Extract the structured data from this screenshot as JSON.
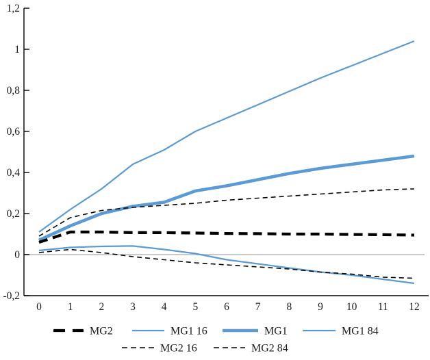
{
  "chart_data": {
    "type": "line",
    "title": "",
    "xlabel": "",
    "ylabel": "",
    "x": [
      0,
      1,
      2,
      3,
      4,
      5,
      6,
      7,
      8,
      9,
      10,
      11,
      12
    ],
    "xtick_labels": [
      "0",
      "1",
      "2",
      "3",
      "4",
      "5",
      "6",
      "7",
      "8",
      "9",
      "10",
      "11",
      "12"
    ],
    "ytick_values": [
      1.2,
      1.0,
      0.8,
      0.6,
      0.4,
      0.2,
      0.0,
      -0.2
    ],
    "ytick_labels": [
      "1,2",
      "1",
      "0,8",
      "0,6",
      "0,4",
      "0,2",
      "0",
      "-0,2"
    ],
    "ylim": [
      -0.2,
      1.2
    ],
    "xlim": [
      0,
      12
    ],
    "grid": "zero-line-only",
    "legend_position": "bottom",
    "series": [
      {
        "name": "MG1 84",
        "color": "#5B9BD5",
        "width": 2.2,
        "dash": null,
        "values": [
          0.11,
          0.22,
          0.32,
          0.44,
          0.51,
          0.6,
          0.665,
          0.73,
          0.795,
          0.86,
          0.92,
          0.98,
          1.04
        ]
      },
      {
        "name": "MG1 16",
        "color": "#5B9BD5",
        "width": 2.2,
        "dash": null,
        "values": [
          0.02,
          0.035,
          0.04,
          0.042,
          0.025,
          0.005,
          -0.025,
          -0.045,
          -0.065,
          -0.085,
          -0.1,
          -0.12,
          -0.14
        ]
      },
      {
        "name": "MG1",
        "color": "#5B9BD5",
        "width": 4.6,
        "dash": null,
        "values": [
          0.07,
          0.14,
          0.2,
          0.235,
          0.255,
          0.31,
          0.335,
          0.365,
          0.395,
          0.42,
          0.44,
          0.46,
          0.48
        ]
      },
      {
        "name": "MG2 84",
        "color": "#000000",
        "width": 1.6,
        "dash": "7 5",
        "values": [
          0.09,
          0.18,
          0.215,
          0.23,
          0.24,
          0.25,
          0.265,
          0.275,
          0.285,
          0.295,
          0.305,
          0.315,
          0.32
        ]
      },
      {
        "name": "MG2 16",
        "color": "#000000",
        "width": 1.6,
        "dash": "7 5",
        "values": [
          0.01,
          0.025,
          0.01,
          -0.01,
          -0.025,
          -0.04,
          -0.05,
          -0.06,
          -0.07,
          -0.085,
          -0.095,
          -0.11,
          -0.115
        ]
      },
      {
        "name": "MG2",
        "color": "#000000",
        "width": 4.2,
        "dash": "13 8",
        "values": [
          0.06,
          0.11,
          0.11,
          0.107,
          0.107,
          0.105,
          0.103,
          0.102,
          0.1,
          0.1,
          0.098,
          0.097,
          0.095
        ]
      }
    ],
    "legend": {
      "rows": [
        [
          {
            "label": "MG2",
            "series": "MG2"
          },
          {
            "label": "MG1 16",
            "series": "MG1 16"
          },
          {
            "label": "MG1",
            "series": "MG1"
          },
          {
            "label": "MG1 84",
            "series": "MG1 84"
          }
        ],
        [
          {
            "label": "MG2 16",
            "series": "MG2 16"
          },
          {
            "label": "MG2 84",
            "series": "MG2 84"
          }
        ]
      ]
    }
  },
  "colors": {
    "accent_blue": "#5B9BD5",
    "line_black": "#000000",
    "zero_line_gray": "#C9C9C9",
    "text": "#1a1a1a",
    "background": "#ffffff"
  }
}
